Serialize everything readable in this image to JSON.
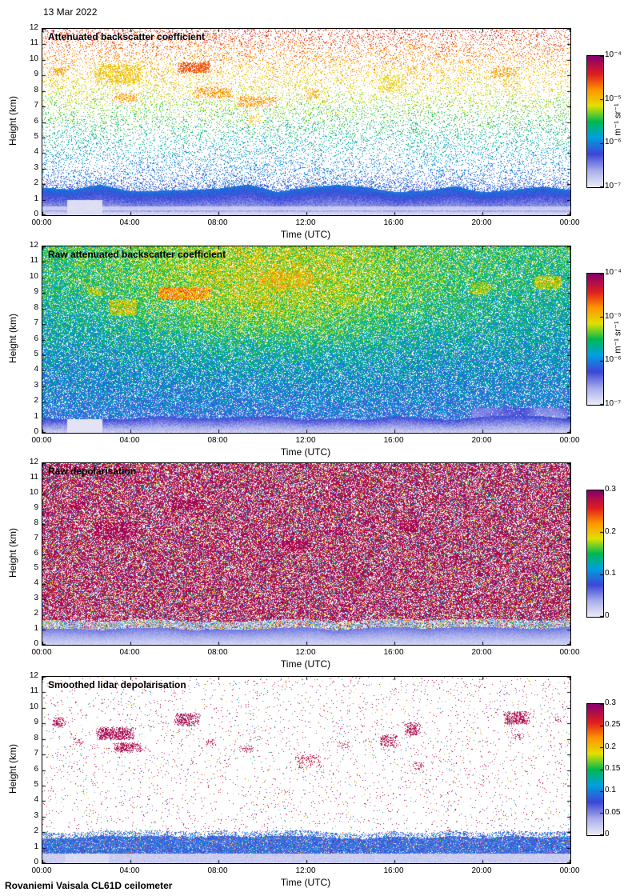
{
  "date_label": "13 Mar 2022",
  "footer": "Rovaniemi Vaisala CL61D ceilometer",
  "colors": {
    "background": "#ffffff",
    "axis": "#000000",
    "text": "#000000",
    "colormap_stops": [
      {
        "t": 0.0,
        "c": "#ebebf7"
      },
      {
        "t": 0.12,
        "c": "#aaafeb"
      },
      {
        "t": 0.25,
        "c": "#3c46d7"
      },
      {
        "t": 0.38,
        "c": "#00a0e1"
      },
      {
        "t": 0.5,
        "c": "#00b950"
      },
      {
        "t": 0.62,
        "c": "#e1e100"
      },
      {
        "t": 0.74,
        "c": "#ff9600"
      },
      {
        "t": 0.86,
        "c": "#e11e1e"
      },
      {
        "t": 1.0,
        "c": "#87006e"
      }
    ]
  },
  "x_tick_labels": [
    "00:00",
    "04:00",
    "08:00",
    "12:00",
    "16:00",
    "20:00",
    "00:00"
  ],
  "y_tick_labels": [
    "0",
    "1",
    "2",
    "3",
    "4",
    "5",
    "6",
    "7",
    "8",
    "9",
    "10",
    "11",
    "12"
  ],
  "chart_data": [
    {
      "type": "heatmap",
      "kind": "backscatter",
      "title": "Attenuated backscatter coefficient",
      "xlabel": "Time (UTC)",
      "ylabel": "Height (km)",
      "xlim_hours": [
        0,
        24
      ],
      "ylim_km": [
        0,
        12
      ],
      "x_ticks_hours": [
        0,
        4,
        8,
        12,
        16,
        20,
        24
      ],
      "y_ticks_km": [
        0,
        1,
        2,
        3,
        4,
        5,
        6,
        7,
        8,
        9,
        10,
        11,
        12
      ],
      "colorbar": {
        "label": "m⁻¹ sr⁻¹",
        "scale": "log",
        "min": "1e-7",
        "max": "1e-4",
        "tick_labels": [
          "10⁻⁴",
          "10⁻⁵",
          "10⁻⁶",
          "10⁻⁷"
        ]
      },
      "aerosol_layer_top_km": 1.8,
      "features": [
        {
          "time_h": [
            0.3,
            1.2
          ],
          "height_km": [
            8.9,
            9.6
          ],
          "level": 0.72,
          "density": 0.5
        },
        {
          "time_h": [
            2.3,
            4.6
          ],
          "height_km": [
            8.4,
            9.8
          ],
          "level": 0.67,
          "density": 0.55
        },
        {
          "time_h": [
            3.1,
            4.4
          ],
          "height_km": [
            7.2,
            7.9
          ],
          "level": 0.72,
          "density": 0.5
        },
        {
          "time_h": [
            5.0,
            5.7
          ],
          "height_km": [
            8.7,
            9.2
          ],
          "level": 0.7,
          "density": 0.4
        },
        {
          "time_h": [
            6.1,
            7.7
          ],
          "height_km": [
            9.1,
            9.9
          ],
          "level": 0.8,
          "density": 0.85
        },
        {
          "time_h": [
            6.8,
            8.7
          ],
          "height_km": [
            7.5,
            8.3
          ],
          "level": 0.73,
          "density": 0.5
        },
        {
          "time_h": [
            8.8,
            10.7
          ],
          "height_km": [
            6.9,
            7.7
          ],
          "level": 0.73,
          "density": 0.5
        },
        {
          "time_h": [
            9.3,
            10.0
          ],
          "height_km": [
            5.8,
            6.5
          ],
          "level": 0.7,
          "density": 0.35
        },
        {
          "time_h": [
            11.8,
            12.7
          ],
          "height_km": [
            7.4,
            8.2
          ],
          "level": 0.7,
          "density": 0.4
        },
        {
          "time_h": [
            10.8,
            11.4
          ],
          "height_km": [
            5.5,
            6.1
          ],
          "level": 0.47,
          "density": 0.35
        },
        {
          "time_h": [
            15.2,
            16.6
          ],
          "height_km": [
            7.8,
            9.1
          ],
          "level": 0.65,
          "density": 0.5
        },
        {
          "time_h": [
            16.4,
            17.2
          ],
          "height_km": [
            8.9,
            9.7
          ],
          "level": 0.7,
          "density": 0.45
        },
        {
          "time_h": [
            16.6,
            17.2
          ],
          "height_km": [
            5.2,
            6.1
          ],
          "level": 0.48,
          "density": 0.45
        },
        {
          "time_h": [
            20.3,
            21.7
          ],
          "height_km": [
            8.8,
            9.6
          ],
          "level": 0.72,
          "density": 0.5
        },
        {
          "time_h": [
            20.7,
            21.5
          ],
          "height_km": [
            8.1,
            8.6
          ],
          "level": 0.7,
          "density": 0.35
        }
      ]
    },
    {
      "type": "heatmap",
      "kind": "raw_backscatter",
      "title": "Raw attenuated backscatter coefficient",
      "xlabel": "Time (UTC)",
      "ylabel": "Height (km)",
      "xlim_hours": [
        0,
        24
      ],
      "ylim_km": [
        0,
        12
      ],
      "x_ticks_hours": [
        0,
        4,
        8,
        12,
        16,
        20,
        24
      ],
      "y_ticks_km": [
        0,
        1,
        2,
        3,
        4,
        5,
        6,
        7,
        8,
        9,
        10,
        11,
        12
      ],
      "colorbar": {
        "label": "m⁻¹ sr⁻¹",
        "scale": "log",
        "min": "1e-7",
        "max": "1e-4",
        "tick_labels": [
          "10⁻⁴",
          "10⁻⁵",
          "10⁻⁶",
          "10⁻⁷"
        ]
      },
      "aerosol_layer_top_km": 1.0,
      "features": [
        {
          "time_h": [
            2.0,
            2.8
          ],
          "height_km": [
            8.8,
            9.4
          ],
          "level": 0.6,
          "density": 0.4
        },
        {
          "time_h": [
            3.0,
            4.3
          ],
          "height_km": [
            7.5,
            8.6
          ],
          "level": 0.62,
          "density": 0.45
        },
        {
          "time_h": [
            5.2,
            7.7
          ],
          "height_km": [
            8.6,
            9.4
          ],
          "level": 0.73,
          "density": 0.5
        },
        {
          "time_h": [
            9.8,
            12.3
          ],
          "height_km": [
            9.3,
            10.4
          ],
          "level": 0.66,
          "density": 0.45
        },
        {
          "time_h": [
            13.4,
            14.3
          ],
          "height_km": [
            8.2,
            8.9
          ],
          "level": 0.6,
          "density": 0.4
        },
        {
          "time_h": [
            19.4,
            20.4
          ],
          "height_km": [
            8.9,
            9.7
          ],
          "level": 0.58,
          "density": 0.4
        },
        {
          "time_h": [
            22.3,
            23.6
          ],
          "height_km": [
            9.2,
            10.1
          ],
          "level": 0.62,
          "density": 0.45
        },
        {
          "time_h": [
            19.5,
            23.9
          ],
          "height_km": [
            0.6,
            1.6
          ],
          "level": 0.2,
          "density": 0.9,
          "smooth": true
        }
      ]
    },
    {
      "type": "heatmap",
      "kind": "raw_depol",
      "title": "Raw depolarisation",
      "xlabel": "Time (UTC)",
      "ylabel": "Height (km)",
      "xlim_hours": [
        0,
        24
      ],
      "ylim_km": [
        0,
        12
      ],
      "x_ticks_hours": [
        0,
        4,
        8,
        12,
        16,
        20,
        24
      ],
      "y_ticks_km": [
        0,
        1,
        2,
        3,
        4,
        5,
        6,
        7,
        8,
        9,
        10,
        11,
        12
      ],
      "colorbar": {
        "label": "",
        "scale": "linear",
        "min": 0,
        "max": 0.3,
        "tick_labels": [
          "0.3",
          "0.2",
          "0.1",
          "0"
        ]
      },
      "aerosol_layer_top_km": 1.0,
      "features": [
        {
          "time_h": [
            1.2,
            2.0
          ],
          "height_km": [
            8.9,
            9.5
          ],
          "level": 0.95,
          "density": 0.85
        },
        {
          "time_h": [
            2.3,
            4.3
          ],
          "height_km": [
            6.9,
            8.1
          ],
          "level": 0.95,
          "density": 0.9
        },
        {
          "time_h": [
            5.8,
            7.4
          ],
          "height_km": [
            8.9,
            9.6
          ],
          "level": 0.95,
          "density": 0.85
        },
        {
          "time_h": [
            10.8,
            12.1
          ],
          "height_km": [
            6.2,
            7.0
          ],
          "level": 0.95,
          "density": 0.8
        },
        {
          "time_h": [
            13.2,
            13.9
          ],
          "height_km": [
            7.2,
            7.8
          ],
          "level": 0.95,
          "density": 0.75
        },
        {
          "time_h": [
            16.1,
            17.1
          ],
          "height_km": [
            7.4,
            8.3
          ],
          "level": 0.95,
          "density": 0.8
        }
      ]
    },
    {
      "type": "heatmap",
      "kind": "smoothed_depol",
      "title": "Smoothed lidar depolarisation",
      "xlabel": "Time (UTC)",
      "ylabel": "Height (km)",
      "xlim_hours": [
        0,
        24
      ],
      "ylim_km": [
        0,
        12
      ],
      "x_ticks_hours": [
        0,
        4,
        8,
        12,
        16,
        20,
        24
      ],
      "y_ticks_km": [
        0,
        1,
        2,
        3,
        4,
        5,
        6,
        7,
        8,
        9,
        10,
        11,
        12
      ],
      "colorbar": {
        "label": "",
        "scale": "linear",
        "min": 0,
        "max": 0.3,
        "tick_labels": [
          "0.3",
          "0.25",
          "0.2",
          "0.15",
          "0.1",
          "0.05",
          "0"
        ]
      },
      "aerosol_layer_top_km": 1.7,
      "features": [
        {
          "time_h": [
            0.4,
            1.1
          ],
          "height_km": [
            8.7,
            9.4
          ],
          "level": 0.94,
          "density": 0.6
        },
        {
          "time_h": [
            1.3,
            1.9
          ],
          "height_km": [
            7.6,
            8.1
          ],
          "level": 0.93,
          "density": 0.45
        },
        {
          "time_h": [
            2.4,
            4.2
          ],
          "height_km": [
            7.9,
            8.8
          ],
          "level": 0.95,
          "density": 0.7
        },
        {
          "time_h": [
            3.2,
            4.6
          ],
          "height_km": [
            7.1,
            7.8
          ],
          "level": 0.94,
          "density": 0.6
        },
        {
          "time_h": [
            5.9,
            7.2
          ],
          "height_km": [
            8.8,
            9.7
          ],
          "level": 0.95,
          "density": 0.65
        },
        {
          "time_h": [
            7.3,
            7.9
          ],
          "height_km": [
            7.5,
            8.0
          ],
          "level": 0.93,
          "density": 0.4
        },
        {
          "time_h": [
            8.9,
            9.7
          ],
          "height_km": [
            7.1,
            7.6
          ],
          "level": 0.93,
          "density": 0.4
        },
        {
          "time_h": [
            11.4,
            12.7
          ],
          "height_km": [
            6.1,
            7.0
          ],
          "level": 0.92,
          "density": 0.3
        },
        {
          "time_h": [
            13.3,
            14.0
          ],
          "height_km": [
            7.3,
            7.9
          ],
          "level": 0.92,
          "density": 0.3
        },
        {
          "time_h": [
            15.3,
            16.2
          ],
          "height_km": [
            7.4,
            8.3
          ],
          "level": 0.94,
          "density": 0.55
        },
        {
          "time_h": [
            16.4,
            17.2
          ],
          "height_km": [
            8.2,
            9.1
          ],
          "level": 0.94,
          "density": 0.6
        },
        {
          "time_h": [
            16.8,
            17.4
          ],
          "height_km": [
            5.9,
            6.6
          ],
          "level": 0.92,
          "density": 0.35
        },
        {
          "time_h": [
            20.9,
            22.2
          ],
          "height_km": [
            8.9,
            9.8
          ],
          "level": 0.94,
          "density": 0.6
        },
        {
          "time_h": [
            21.3,
            21.9
          ],
          "height_km": [
            7.9,
            8.4
          ],
          "level": 0.93,
          "density": 0.4
        },
        {
          "time_h": [
            23.2,
            23.7
          ],
          "height_km": [
            9.0,
            9.5
          ],
          "level": 0.93,
          "density": 0.4
        }
      ]
    }
  ]
}
